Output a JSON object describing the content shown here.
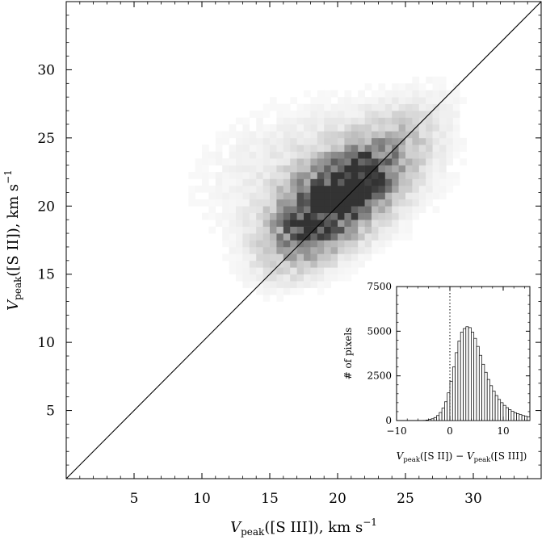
{
  "chart_data": [
    {
      "type": "heatmap",
      "description": "2D density histogram of peak velocities with one-to-one line",
      "xlabel": {
        "main": "V",
        "sub": "peak",
        "rest": "([S III]),   km s",
        "sup": "−1"
      },
      "ylabel": {
        "main": "V",
        "sub": "peak",
        "rest": "([S II]),   km s",
        "sup": "−1"
      },
      "xlim": [
        0,
        35
      ],
      "ylim": [
        0,
        35
      ],
      "xticks": [
        5,
        10,
        15,
        20,
        25,
        30
      ],
      "yticks": [
        5,
        10,
        15,
        20,
        25,
        30
      ],
      "xtick_labels": [
        "5",
        "10",
        "15",
        "20",
        "25",
        "30"
      ],
      "ytick_labels": [
        "5",
        "10",
        "15",
        "20",
        "25",
        "30"
      ],
      "reference_line": {
        "type": "y=x",
        "color": "#000000"
      },
      "density": {
        "colormap": "gray_r",
        "components": [
          {
            "center": [
              20.5,
              21.0
            ],
            "sigma_major": 3.0,
            "sigma_minor": 1.7,
            "angle_deg": 40,
            "weight": 1.0
          },
          {
            "center": [
              18.0,
              19.0
            ],
            "sigma_major": 2.5,
            "sigma_minor": 1.6,
            "angle_deg": 45,
            "weight": 0.7
          },
          {
            "center": [
              21.5,
              22.0
            ],
            "sigma_major": 1.5,
            "sigma_minor": 1.0,
            "angle_deg": 35,
            "weight": 0.6
          },
          {
            "center": [
              19.0,
              22.5
            ],
            "sigma_major": 5.0,
            "sigma_minor": 3.0,
            "angle_deg": 10,
            "weight": 0.12
          },
          {
            "center": [
              24.0,
              24.0
            ],
            "sigma_major": 3.0,
            "sigma_minor": 1.5,
            "angle_deg": 45,
            "weight": 0.18
          }
        ]
      }
    },
    {
      "type": "bar",
      "description": "Histogram of velocity difference (inset)",
      "xlabel": {
        "parts": [
          "V",
          "peak",
          "([S II]) − ",
          "V",
          "peak",
          "([S III])"
        ]
      },
      "ylabel": "# of pixels",
      "xlim": [
        -10,
        15
      ],
      "ylim": [
        0,
        7500
      ],
      "xticks": [
        -10,
        0,
        10
      ],
      "xtick_labels": [
        "−10",
        "0",
        "10"
      ],
      "yticks": [
        0,
        2500,
        5000,
        7500
      ],
      "ytick_labels": [
        "0",
        "2500",
        "5000",
        "7500"
      ],
      "bin_width": 0.5,
      "bin_start": -10,
      "values": [
        0,
        0,
        0,
        0,
        0,
        0,
        0,
        0,
        0,
        0,
        10,
        30,
        60,
        100,
        170,
        280,
        450,
        700,
        1050,
        1550,
        2200,
        3000,
        3800,
        4450,
        4950,
        5150,
        5250,
        5200,
        4950,
        4600,
        4150,
        3650,
        3150,
        2700,
        2300,
        1950,
        1650,
        1400,
        1180,
        1000,
        850,
        720,
        610,
        520,
        440,
        380,
        330,
        280,
        240,
        210
      ],
      "vline": {
        "x": 0,
        "style": "dotted"
      }
    }
  ]
}
